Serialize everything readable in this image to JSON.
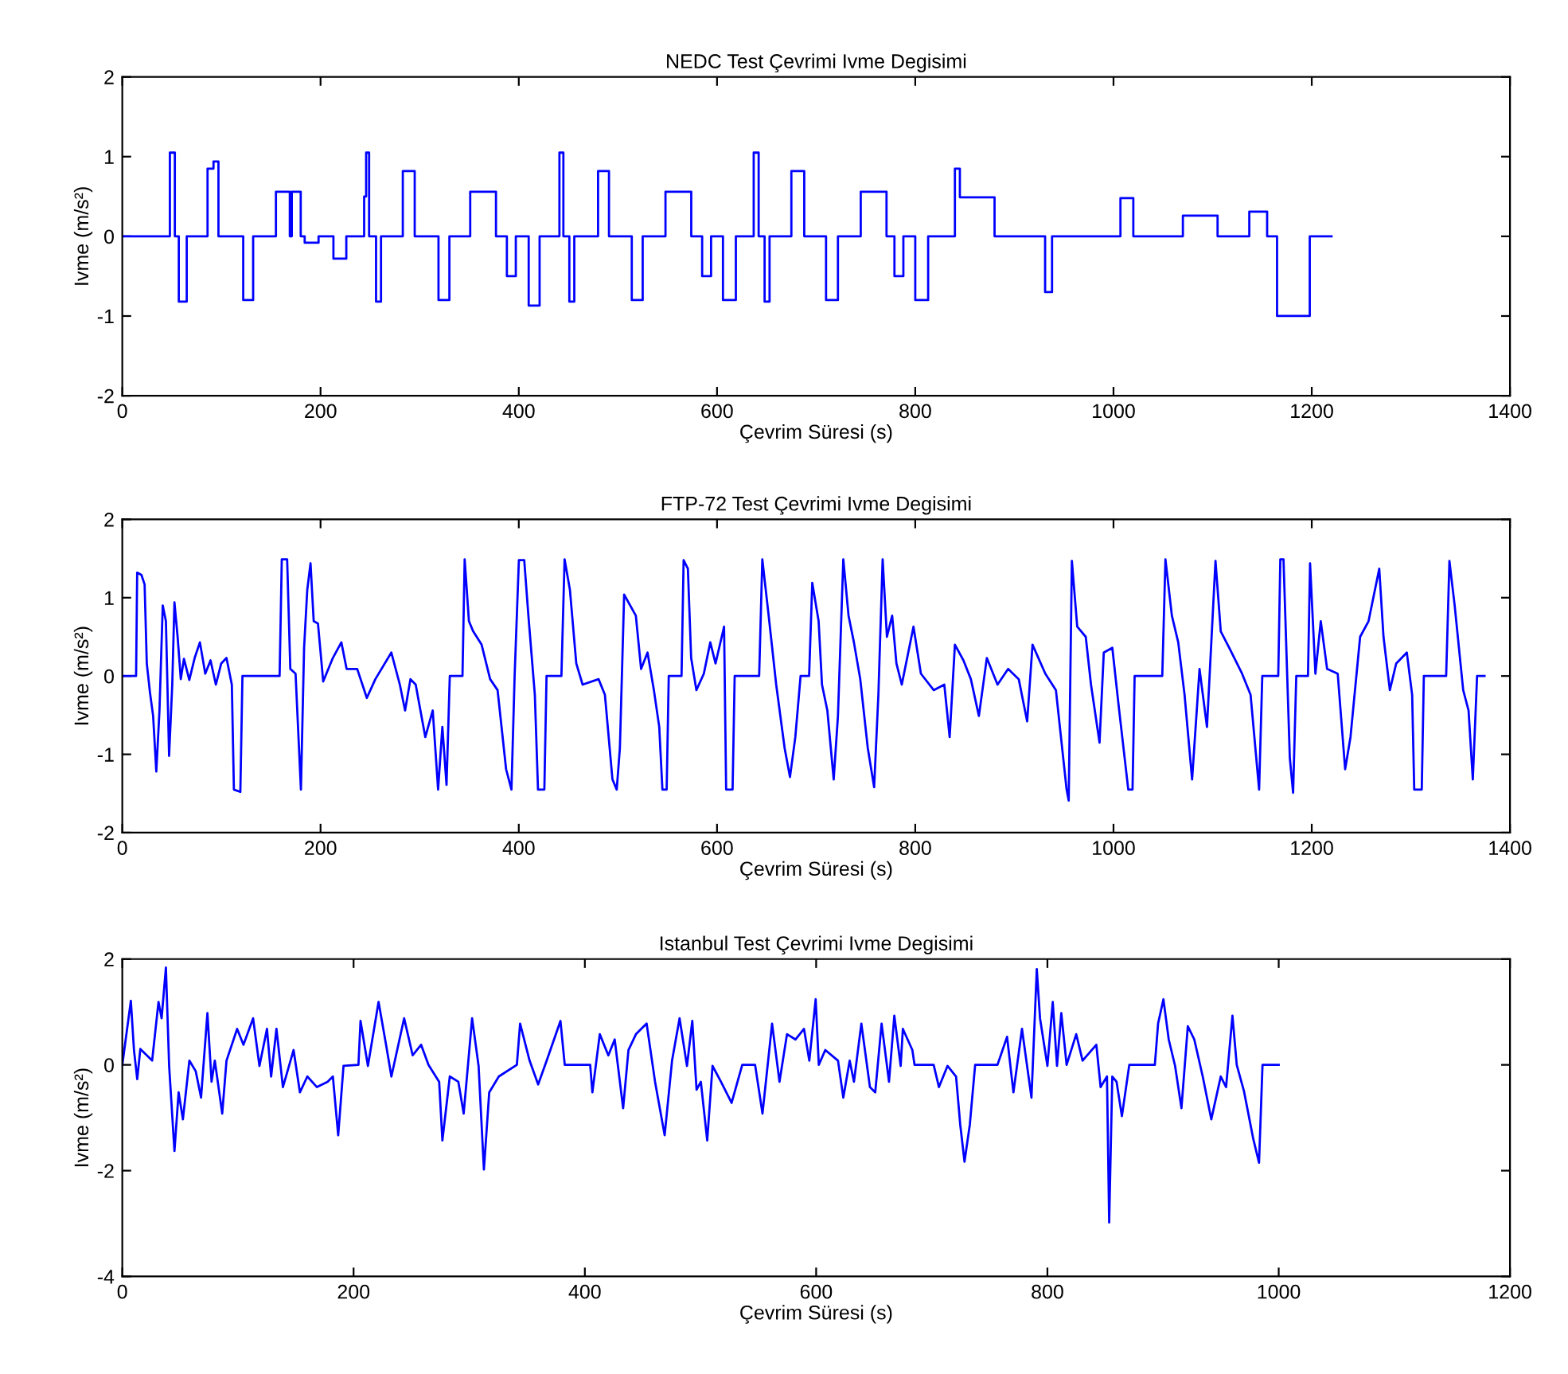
{
  "chart_data": [
    {
      "type": "step",
      "title": "NEDC Test Çevrimi Ivme Degisimi",
      "xlabel": "Çevrim Süresi (s)",
      "ylabel": "Ivme (m/s²)",
      "x": [
        0,
        48,
        53,
        57,
        65,
        86,
        92,
        97,
        122,
        132,
        155,
        169,
        171,
        180,
        184,
        198,
        213,
        226,
        244,
        246,
        249,
        256,
        261,
        283,
        295,
        319,
        330,
        351,
        377,
        388,
        397,
        410,
        421,
        441,
        445,
        451,
        456,
        480,
        491,
        514,
        525,
        548,
        574,
        585,
        594,
        606,
        619,
        637,
        642,
        648,
        653,
        675,
        688,
        710,
        722,
        745,
        771,
        779,
        788,
        800,
        813,
        840,
        845,
        880,
        931,
        938,
        1007,
        1020,
        1070,
        1105,
        1137,
        1155,
        1165,
        1198,
        1220
      ],
      "series": [
        {
          "color": "#0000ff",
          "values": [
            0,
            1.05,
            0,
            -0.82,
            0,
            0.85,
            0.94,
            0,
            -0.8,
            0,
            0.56,
            0,
            0.56,
            0,
            -0.08,
            0,
            -0.28,
            0,
            0.5,
            1.05,
            0,
            -0.82,
            0,
            0.82,
            0,
            -0.8,
            0,
            0.56,
            0,
            -0.5,
            0,
            -0.87,
            0,
            1.05,
            0,
            -0.82,
            0,
            0.82,
            0,
            -0.8,
            0,
            0.56,
            0,
            -0.5,
            0,
            -0.8,
            0,
            1.05,
            0,
            -0.82,
            0,
            0.82,
            0,
            -0.8,
            0,
            0.56,
            0,
            -0.5,
            0,
            -0.8,
            0,
            0.85,
            0.49,
            0,
            -0.7,
            0,
            0.48,
            0,
            0.26,
            0,
            0.31,
            0,
            -1.0,
            0,
            0
          ]
        }
      ],
      "xlim": [
        0,
        1400
      ],
      "ylim": [
        -2,
        2
      ],
      "xticks": [
        0,
        200,
        400,
        600,
        800,
        1000,
        1200,
        1400
      ],
      "yticks": [
        -2,
        -1,
        0,
        1,
        2
      ]
    },
    {
      "type": "line",
      "title": "FTP-72 Test Çevrimi Ivme Degisimi",
      "xlabel": "Çevrim Süresi (s)",
      "ylabel": "Ivme (m/s²)",
      "x": [
        0,
        13.9,
        15.0,
        19.3,
        22.5,
        24.7,
        27.9,
        31.1,
        34.3,
        37.5,
        40.8,
        44.0,
        47.2,
        50.4,
        52.6,
        55.8,
        59.0,
        62.2,
        67.6,
        73.0,
        78.3,
        83.7,
        89.0,
        94.4,
        99.8,
        105.1,
        110.5,
        112.6,
        119.1,
        121.2,
        158.7,
        160.9,
        166.3,
        169.5,
        174.8,
        180.2,
        183.4,
        186.6,
        189.9,
        193.1,
        197.4,
        202.7,
        212.4,
        221.0,
        226.3,
        237.0,
        246.7,
        255.3,
        271.4,
        280.0,
        285.3,
        290.7,
        296.0,
        305.7,
        313.2,
        318.6,
        322.9,
        327.1,
        330.4,
        343.2,
        345.4,
        349.7,
        354.0,
        362.5,
        371.1,
        378.6,
        387.2,
        392.6,
        395.8,
        400.1,
        405.5,
        409.7,
        416.2,
        419.4,
        425.8,
        428.0,
        443.0,
        446.2,
        451.6,
        458.0,
        464.4,
        480.5,
        486.9,
        494.5,
        498.8,
        502.0,
        506.3,
        518.1,
        523.4,
        529.9,
        536.3,
        541.7,
        544.9,
        549.2,
        551.3,
        564.2,
        566.3,
        570.6,
        573.9,
        579.2,
        586.7,
        593.2,
        598.5,
        607.1,
        609.2,
        615.7,
        617.8,
        642.5,
        645.7,
        652.1,
        659.7,
        668.2,
        673.6,
        679.0,
        684.3,
        692.9,
        696.1,
        702.5,
        705.9,
        711.3,
        717.7,
        722.0,
        727.4,
        732.7,
        738.1,
        744.5,
        752.1,
        758.5,
        762.8,
        767.1,
        771.4,
        776.7,
        781.0,
        786.4,
        798.2,
        805.7,
        818.6,
        829.3,
        834.7,
        840.0,
        848.6,
        856.1,
        864.2,
        872.2,
        883.0,
        893.7,
        904.4,
        912.9,
        918.3,
        931.2,
        941.9,
        952.7,
        954.8,
        958.0,
        963.4,
        972.0,
        977.3,
        985.9,
        990.2,
        998.8,
        1005.2,
        1014.9,
        1019.2,
        1021.3,
        1049.2,
        1052.4,
        1058.9,
        1065.3,
        1071.7,
        1079.3,
        1086.8,
        1094.3,
        1102.9,
        1108.2,
        1116.8,
        1129.7,
        1138.3,
        1146.9,
        1150.1,
        1166.2,
        1168.3,
        1171.5,
        1177.9,
        1181.2,
        1184.4,
        1196.2,
        1198.3,
        1203.7,
        1209.1,
        1215.5,
        1226.2,
        1233.7,
        1239.1,
        1248.8,
        1257.3,
        1268.1,
        1272.4,
        1278.8,
        1285.2,
        1295.9,
        1301.3,
        1303.4,
        1311.0,
        1313.1,
        1335.6,
        1338.9,
        1344.2,
        1352.8,
        1358.2,
        1362.5,
        1366.8,
        1374.3
      ],
      "series": [
        {
          "color": "#0000ff",
          "values": [
            0,
            0,
            1.32,
            1.29,
            1.17,
            0.16,
            -0.21,
            -0.51,
            -1.22,
            -0.44,
            0.9,
            0.7,
            -1.02,
            -0.11,
            0.94,
            0.5,
            -0.04,
            0.22,
            -0.05,
            0.23,
            0.43,
            0.03,
            0.2,
            -0.11,
            0.16,
            0.23,
            -0.11,
            -1.45,
            -1.48,
            0,
            0,
            1.49,
            1.49,
            0.09,
            0.03,
            -1.45,
            0.36,
            1.1,
            1.44,
            0.7,
            0.67,
            -0.07,
            0.23,
            0.43,
            0.09,
            0.09,
            -0.28,
            -0.04,
            0.3,
            -0.11,
            -0.44,
            -0.04,
            -0.11,
            -0.78,
            -0.44,
            -1.45,
            -0.65,
            -1.39,
            0,
            0,
            1.49,
            0.7,
            0.57,
            0.4,
            -0.04,
            -0.18,
            -1.19,
            -1.45,
            0,
            1.48,
            1.48,
            0.77,
            -0.24,
            -1.45,
            -1.45,
            0,
            0,
            1.49,
            1.1,
            0.16,
            -0.11,
            -0.04,
            -0.24,
            -1.32,
            -1.45,
            -0.92,
            1.04,
            0.77,
            0.09,
            0.3,
            -0.18,
            -0.65,
            -1.45,
            -1.45,
            0,
            0,
            1.48,
            1.37,
            0.23,
            -0.18,
            0.03,
            0.43,
            0.16,
            0.63,
            -1.45,
            -1.45,
            0,
            0,
            1.49,
            0.77,
            -0.11,
            -0.92,
            -1.29,
            -0.78,
            0,
            0,
            1.19,
            0.7,
            -0.11,
            -0.44,
            -1.32,
            -0.51,
            1.49,
            0.77,
            0.43,
            -0.04,
            -0.92,
            -1.42,
            -0.24,
            1.49,
            0.5,
            0.77,
            0.16,
            -0.11,
            0.63,
            0.03,
            -0.18,
            -0.11,
            -0.78,
            0.4,
            0.2,
            -0.04,
            -0.51,
            0.23,
            -0.11,
            0.09,
            -0.04,
            -0.58,
            0.4,
            0.03,
            -0.18,
            -1.45,
            -1.59,
            1.47,
            0.63,
            0.5,
            -0.11,
            -0.85,
            0.3,
            0.36,
            -0.38,
            -1.45,
            -1.45,
            0,
            0,
            1.49,
            0.77,
            0.43,
            -0.24,
            -1.32,
            0.09,
            -0.65,
            1.47,
            0.57,
            0.36,
            0.03,
            -0.24,
            -1.45,
            0,
            0,
            1.49,
            1.49,
            -1.05,
            -1.49,
            0,
            0,
            1.44,
            0.03,
            0.7,
            0.09,
            0.03,
            -1.19,
            -0.78,
            0.5,
            0.7,
            1.37,
            0.5,
            -0.18,
            0.16,
            0.3,
            -0.24,
            -1.45,
            -1.45,
            0,
            0,
            1.47,
            0.9,
            -0.18,
            -0.44,
            -1.32,
            0,
            0
          ]
        }
      ],
      "xlim": [
        0,
        1400
      ],
      "ylim": [
        -2,
        2
      ],
      "xticks": [
        0,
        200,
        400,
        600,
        800,
        1000,
        1200,
        1400
      ],
      "yticks": [
        -2,
        -1,
        0,
        1,
        2
      ]
    },
    {
      "type": "line",
      "title": "Istanbul Test Çevrimi Ivme Degisimi",
      "xlabel": "Çevrim Süresi (s)",
      "ylabel": "Ivme (m/s²)",
      "x": [
        0,
        7.4,
        10.1,
        12.9,
        15.6,
        25.8,
        31.3,
        34.0,
        37.7,
        40.5,
        45.1,
        48.7,
        52.4,
        58.0,
        63.5,
        68.1,
        73.6,
        77.2,
        80.0,
        86.4,
        90.1,
        99.3,
        104.8,
        113.1,
        118.6,
        125.1,
        128.7,
        133.3,
        138.9,
        148.1,
        153.6,
        160.0,
        168.3,
        177.5,
        182.1,
        186.7,
        191.3,
        204.2,
        206.0,
        212.4,
        221.6,
        228.1,
        232.7,
        243.7,
        251.1,
        258.4,
        264.8,
        274.0,
        276.8,
        283.2,
        290.6,
        295.2,
        302.5,
        308.1,
        312.7,
        317.3,
        325.6,
        341.2,
        344.0,
        352.2,
        359.6,
        367.0,
        378.9,
        382.6,
        404.6,
        406.5,
        412.9,
        420.3,
        425.8,
        433.1,
        437.7,
        444.2,
        453.4,
        460.7,
        469.0,
        475.4,
        481.9,
        488.3,
        492.9,
        496.6,
        500.3,
        505.8,
        510.4,
        517.7,
        526.9,
        536.1,
        547.2,
        553.6,
        561.9,
        568.3,
        574.8,
        582.1,
        589.5,
        594.1,
        599.6,
        602.3,
        607.9,
        618.9,
        623.5,
        629.0,
        632.7,
        639.1,
        646.5,
        651.1,
        656.6,
        663.0,
        667.6,
        673.1,
        675.0,
        683.2,
        685.1,
        701.6,
        706.2,
        713.6,
        721.0,
        724.6,
        728.3,
        732.9,
        737.5,
        756.8,
        765.1,
        770.6,
        778.0,
        786.2,
        790.8,
        793.6,
        800.0,
        804.6,
        808.3,
        812.0,
        816.6,
        824.9,
        830.4,
        842.3,
        846.0,
        851.5,
        853.4,
        856.1,
        859.8,
        864.4,
        870.8,
        892.9,
        895.7,
        900.3,
        904.9,
        910.4,
        915.9,
        921.4,
        927.0,
        934.3,
        941.7,
        949.9,
        954.5,
        960.0,
        963.7,
        970,
        978,
        983,
        986,
        1000
      ],
      "series": [
        {
          "color": "#0000ff",
          "values": [
            0,
            1.21,
            0.28,
            -0.27,
            0.3,
            0.08,
            1.19,
            0.88,
            1.84,
            -0.02,
            -1.63,
            -0.52,
            -1.03,
            0.08,
            -0.12,
            -0.62,
            0.98,
            -0.32,
            0.08,
            -0.92,
            0.08,
            0.68,
            0.38,
            0.88,
            -0.02,
            0.68,
            -0.22,
            0.68,
            -0.42,
            0.28,
            -0.52,
            -0.22,
            -0.42,
            -0.32,
            -0.22,
            -1.33,
            -0.02,
            0,
            0.83,
            -0.02,
            1.19,
            0.38,
            -0.22,
            0.88,
            0.18,
            0.38,
            0,
            -0.32,
            -1.43,
            -0.22,
            -0.32,
            -0.92,
            0.88,
            -0.02,
            -1.98,
            -0.52,
            -0.22,
            0,
            0.78,
            0.08,
            -0.37,
            0.08,
            0.83,
            0,
            0,
            -0.52,
            0.58,
            0.18,
            0.48,
            -0.82,
            0.28,
            0.58,
            0.78,
            -0.32,
            -1.33,
            0.08,
            0.88,
            -0.02,
            0.83,
            -0.47,
            -0.32,
            -1.43,
            -0.02,
            -0.32,
            -0.72,
            0,
            0,
            -0.92,
            0.78,
            -0.32,
            0.58,
            0.48,
            0.68,
            0.08,
            1.24,
            0,
            0.28,
            0.08,
            -0.62,
            0.08,
            -0.32,
            0.78,
            -0.42,
            -0.52,
            0.78,
            -0.32,
            0.93,
            -0.02,
            0.68,
            0.28,
            0,
            0,
            -0.42,
            -0.02,
            -0.22,
            -1.13,
            -1.83,
            -1.13,
            0,
            0,
            0.53,
            -0.52,
            0.68,
            -0.62,
            1.81,
            0.88,
            -0.02,
            1.19,
            -0.02,
            0.98,
            0,
            0.58,
            0.08,
            0.38,
            -0.42,
            -0.22,
            -2.98,
            -0.22,
            -0.32,
            -0.97,
            0,
            0,
            0.78,
            1.24,
            0.48,
            -0.02,
            -0.82,
            0.73,
            0.48,
            -0.22,
            -1.03,
            -0.22,
            -0.42,
            0.93,
            0,
            -0.5,
            -1.4,
            -1.85,
            0,
            0
          ]
        }
      ],
      "xlim": [
        0,
        1200
      ],
      "ylim": [
        -4,
        2
      ],
      "xticks": [
        0,
        200,
        400,
        600,
        800,
        1000,
        1200
      ],
      "yticks": [
        -4,
        -2,
        0,
        2
      ]
    }
  ]
}
